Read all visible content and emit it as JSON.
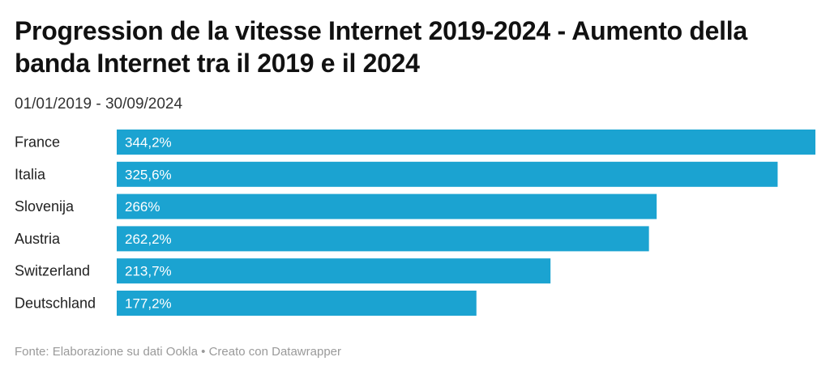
{
  "header": {
    "title": "Progression de la vitesse Internet 2019-2024 - Aumento della banda Internet tra il 2019 e il 2024",
    "subtitle": "01/01/2019 - 30/09/2024"
  },
  "footer": {
    "source_prefix": "Fonte: ",
    "source_text": "Elaborazione su dati Ookla",
    "separator": " • ",
    "credit": "Creato con Datawrapper"
  },
  "colors": {
    "bar": "#1ba3d1"
  },
  "chart_data": {
    "type": "bar",
    "orientation": "horizontal",
    "categories": [
      "France",
      "Italia",
      "Slovenija",
      "Austria",
      "Switzerland",
      "Deutschland"
    ],
    "values": [
      344.2,
      325.6,
      266,
      262.2,
      213.7,
      177.2
    ],
    "value_labels": [
      "344,2%",
      "325,6%",
      "266%",
      "262,2%",
      "213,7%",
      "177,2%"
    ],
    "xlim": [
      0,
      344.2
    ],
    "grid": false,
    "legend": "none"
  }
}
